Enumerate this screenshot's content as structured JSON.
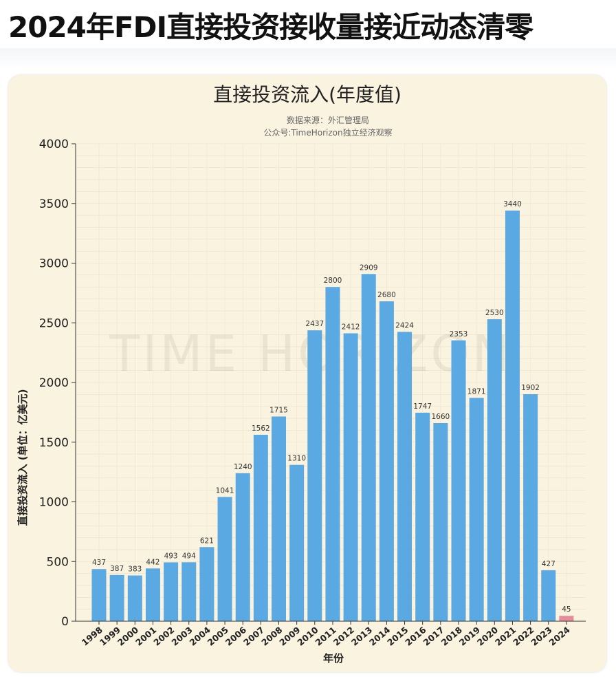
{
  "page": {
    "headline": "2024年FDI直接投资接收量接近动态清零"
  },
  "chart_data": {
    "type": "bar",
    "title": "直接投资流入(年度值)",
    "subtitle_source": "数据来源：外汇管理局",
    "subtitle_account": "公众号:TimeHorizon独立经济观察",
    "watermark": "TIME HORIZON",
    "xlabel": "年份",
    "ylabel": "直接投资流入 (单位：亿美元)",
    "ylim": [
      0,
      4000
    ],
    "yticks": [
      0,
      500,
      1000,
      1500,
      2000,
      2500,
      3000,
      3500,
      4000
    ],
    "grid": true,
    "categories": [
      "1998",
      "1999",
      "2000",
      "2001",
      "2002",
      "2003",
      "2004",
      "2005",
      "2006",
      "2007",
      "2008",
      "2009",
      "2010",
      "2011",
      "2012",
      "2013",
      "2014",
      "2015",
      "2016",
      "2017",
      "2018",
      "2019",
      "2020",
      "2021",
      "2022",
      "2023",
      "2024"
    ],
    "values": [
      437,
      387,
      383,
      442,
      493,
      494,
      621,
      1041,
      1240,
      1562,
      1715,
      1310,
      2437,
      2800,
      2412,
      2909,
      2680,
      2424,
      1747,
      1660,
      2353,
      1871,
      2530,
      3440,
      1902,
      427,
      45
    ],
    "bar_color": "#5aa9e3",
    "highlight_color": "#e88b9b",
    "highlight_category": "2024"
  }
}
